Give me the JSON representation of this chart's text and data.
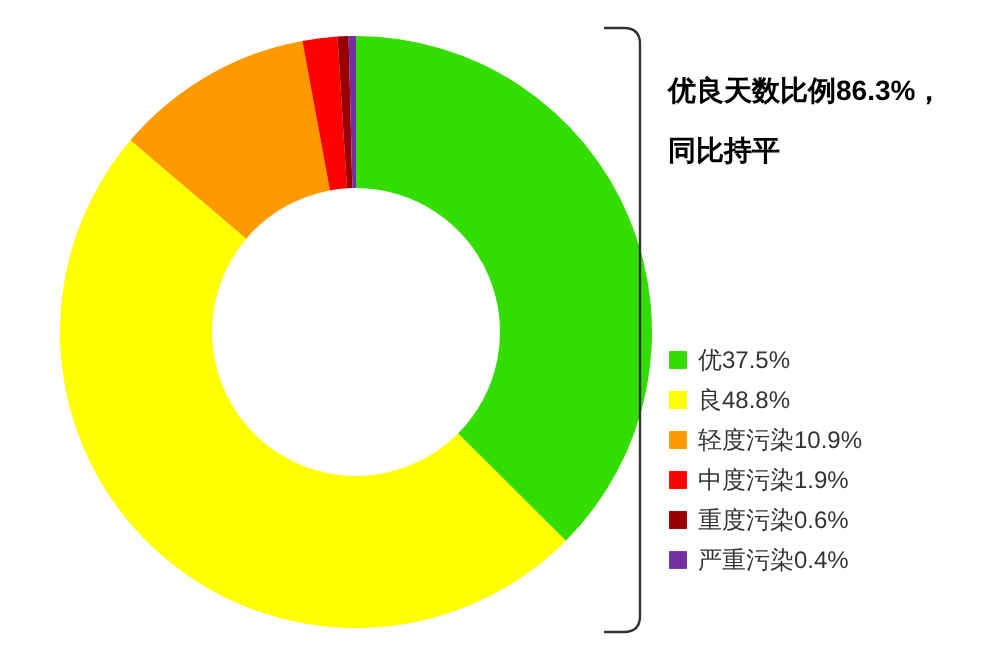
{
  "chart_data": {
    "type": "donut",
    "categories": [
      "优37.5%",
      "良48.8%",
      "轻度污染10.9%",
      "中度污染1.9%",
      "重度污染0.6%",
      "严重污染0.4%"
    ],
    "values": [
      37.5,
      48.8,
      10.9,
      1.9,
      0.6,
      0.4
    ],
    "colors": [
      "#33dd00",
      "#ffff00",
      "#ff9900",
      "#ff0000",
      "#990000",
      "#7030a0"
    ],
    "legend": "right",
    "annotations": [
      "优良天数比例86.3%，",
      "同比持平"
    ]
  }
}
